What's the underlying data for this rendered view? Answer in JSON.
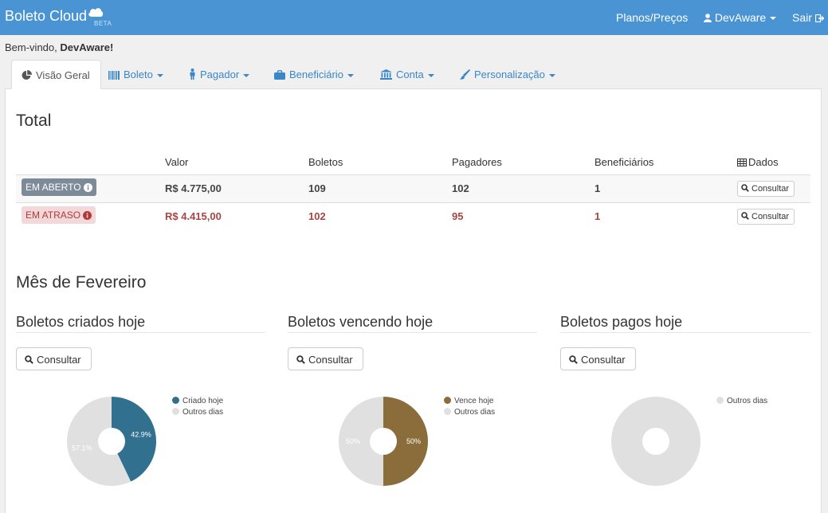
{
  "navbar": {
    "brand": "Boleto Cloud",
    "beta": "BETA",
    "plans": "Planos/Preços",
    "user": "DevAware",
    "logout": "Sair"
  },
  "welcome": {
    "prefix": "Bem-vindo, ",
    "name": "DevAware!"
  },
  "tabs": [
    {
      "label": "Visão Geral",
      "icon": "pie-chart-icon"
    },
    {
      "label": "Boleto",
      "icon": "barcode-icon"
    },
    {
      "label": "Pagador",
      "icon": "person-icon"
    },
    {
      "label": "Beneficiário",
      "icon": "briefcase-icon"
    },
    {
      "label": "Conta",
      "icon": "bank-icon"
    },
    {
      "label": "Personalização",
      "icon": "brush-icon"
    }
  ],
  "total": {
    "title": "Total",
    "headers": {
      "valor": "Valor",
      "boletos": "Boletos",
      "pagadores": "Pagadores",
      "beneficiarios": "Beneficiários",
      "dados": "Dados"
    },
    "rows": [
      {
        "status": "EM ABERTO",
        "valor": "R$ 4.775,00",
        "boletos": "109",
        "pagadores": "102",
        "beneficiarios": "1",
        "action": "Consultar"
      },
      {
        "status": "EM ATRASO",
        "valor": "R$ 4.415,00",
        "boletos": "102",
        "pagadores": "95",
        "beneficiarios": "1",
        "action": "Consultar"
      }
    ]
  },
  "month": {
    "title": "Mês de Fevereiro",
    "sections": [
      {
        "title": "Boletos criados hoje",
        "button": "Consultar"
      },
      {
        "title": "Boletos vencendo hoje",
        "button": "Consultar"
      },
      {
        "title": "Boletos pagos hoje",
        "button": "Consultar"
      }
    ]
  },
  "colors": {
    "navbar": "#4b94d3",
    "criado": "#31708f",
    "vence": "#8a6d3b",
    "outros": "#e0e0e0",
    "late": "#a94442"
  },
  "chart_data": [
    {
      "type": "pie",
      "title": "Boletos criados hoje",
      "series": [
        {
          "name": "Criado hoje",
          "value": 42.9,
          "label": "42.9%",
          "color": "#31708f"
        },
        {
          "name": "Outros dias",
          "value": 57.1,
          "label": "57.1%",
          "color": "#e0e0e0"
        }
      ],
      "legend": "top-right"
    },
    {
      "type": "pie",
      "title": "Boletos vencendo hoje",
      "series": [
        {
          "name": "Vence hoje",
          "value": 50,
          "label": "50%",
          "color": "#8a6d3b"
        },
        {
          "name": "Outros dias",
          "value": 50,
          "label": "50%",
          "color": "#e0e0e0"
        }
      ],
      "legend": "top-right"
    },
    {
      "type": "pie",
      "title": "Boletos pagos hoje",
      "series": [
        {
          "name": "Outros dias",
          "value": 100,
          "label": "",
          "color": "#e0e0e0"
        }
      ],
      "legend": "top-right"
    }
  ]
}
